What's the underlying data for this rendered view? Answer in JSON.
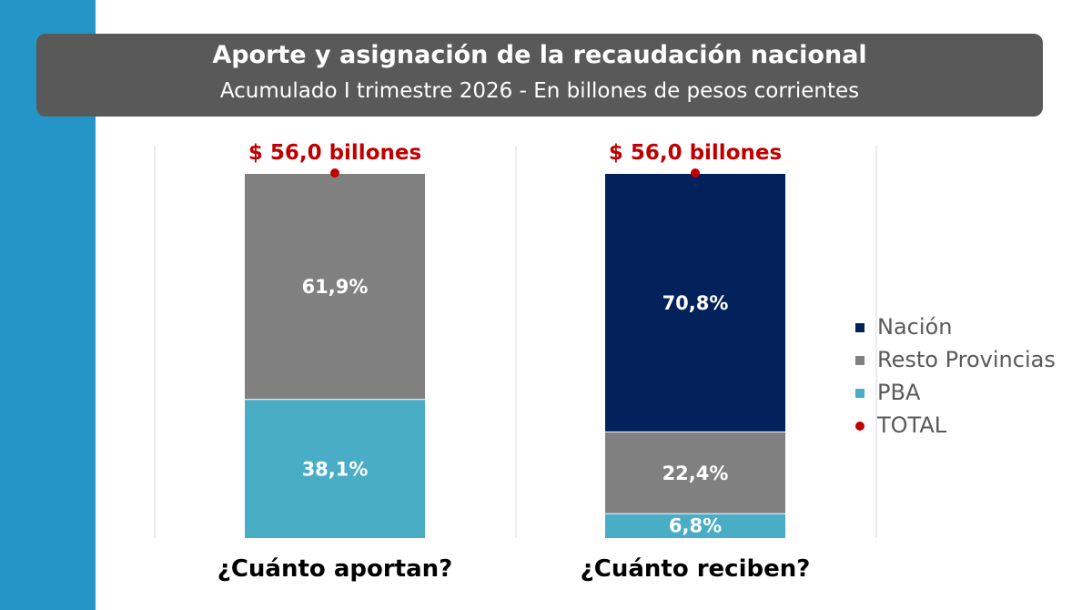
{
  "header": {
    "title": "Aporte y asignación de la recaudación nacional",
    "subtitle": "Acumulado I trimestre 2026 - En billones de pesos corrientes"
  },
  "colors": {
    "sidebar": "#2595c8",
    "header_bg": "#595959",
    "nacion": "#03215b",
    "resto": "#808080",
    "pba": "#4aadc6",
    "total": "#c00000",
    "gridline": "#d9d9d9"
  },
  "chart_data": {
    "type": "bar",
    "stacked": true,
    "unit": "%",
    "title": "Aporte y asignación de la recaudación nacional",
    "subtitle": "Acumulado I trimestre 2026 - En billones de pesos corrientes",
    "categories": [
      "¿Cuánto aportan?",
      "¿Cuánto reciben?"
    ],
    "series": [
      {
        "name": "PBA",
        "key": "pba",
        "values": [
          38.1,
          6.8
        ],
        "labels": [
          "38,1%",
          "6,8%"
        ]
      },
      {
        "name": "Resto Provincias",
        "key": "resto",
        "values": [
          61.9,
          22.4
        ],
        "labels": [
          "61,9%",
          "22,4%"
        ]
      },
      {
        "name": "Nación",
        "key": "nacion",
        "values": [
          0,
          70.8
        ],
        "labels": [
          "",
          "70,8%"
        ]
      }
    ],
    "totals": {
      "values": [
        56.0,
        56.0
      ],
      "labels": [
        "$ 56,0 billones",
        "$ 56,0 billones"
      ]
    },
    "ylim": [
      0,
      100
    ],
    "grid": true,
    "legend": {
      "placement": "right",
      "items": [
        {
          "label": "Nación",
          "key": "nacion",
          "marker": "square"
        },
        {
          "label": "Resto Provincias",
          "key": "resto",
          "marker": "square"
        },
        {
          "label": "PBA",
          "key": "pba",
          "marker": "square"
        },
        {
          "label": "TOTAL",
          "key": "total",
          "marker": "dot"
        }
      ]
    }
  }
}
